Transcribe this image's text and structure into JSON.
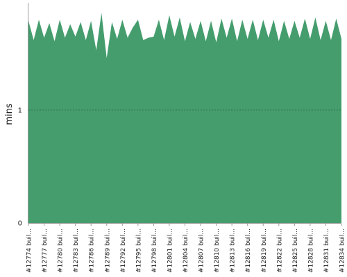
{
  "colors": {
    "area_fill": "#459d6d",
    "gridline": "#2f6e4b",
    "axis": "#999999",
    "background": "#ffffff"
  },
  "chart_data": {
    "type": "area",
    "title": "",
    "xlabel": "",
    "ylabel": "mins",
    "ylim": [
      0,
      1.95
    ],
    "y_ticks": [
      0,
      1
    ],
    "y_tick_labels": [
      "0",
      "1"
    ],
    "grid": "dashed horizontal line at y=1",
    "legend": "none",
    "x_tick_labels": [
      "#12774 buil...",
      "#12777 buil...",
      "#12780 buil...",
      "#12783 buil...",
      "#12786 buil...",
      "#12789 buil...",
      "#12792 buil...",
      "#12795 buil...",
      "#12798 buil...",
      "#12801 buil...",
      "#12804 buil...",
      "#12807 buil...",
      "#12810 buil...",
      "#12813 buil...",
      "#12816 buil...",
      "#12819 buil...",
      "#12822 buil...",
      "#12825 buil...",
      "#12828 buil...",
      "#12831 buil...",
      "#12834 buil..."
    ],
    "x_build_start": 12774,
    "x_build_end": 12834,
    "series": [
      {
        "values": [
          1.79,
          1.62,
          1.8,
          1.64,
          1.77,
          1.61,
          1.8,
          1.64,
          1.76,
          1.65,
          1.78,
          1.62,
          1.79,
          1.53,
          1.86,
          1.46,
          1.78,
          1.63,
          1.8,
          1.64,
          1.73,
          1.8,
          1.62,
          1.64,
          1.65,
          1.8,
          1.62,
          1.84,
          1.65,
          1.82,
          1.61,
          1.78,
          1.63,
          1.79,
          1.61,
          1.79,
          1.6,
          1.81,
          1.64,
          1.81,
          1.61,
          1.8,
          1.63,
          1.8,
          1.62,
          1.8,
          1.64,
          1.8,
          1.61,
          1.79,
          1.63,
          1.79,
          1.64,
          1.81,
          1.63,
          1.82,
          1.62,
          1.79,
          1.62,
          1.81,
          1.63
        ]
      }
    ]
  }
}
